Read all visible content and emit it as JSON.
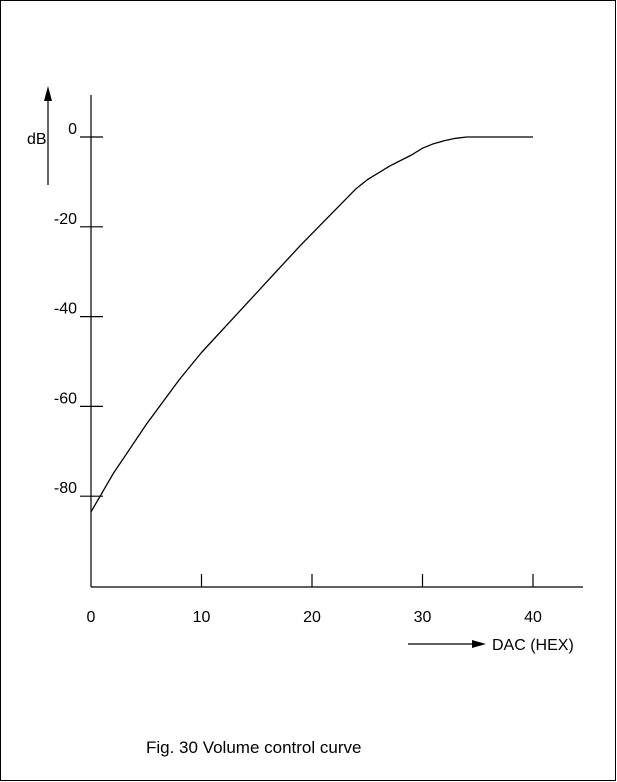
{
  "chart_data": {
    "type": "line",
    "ylabel": "dB",
    "xlabel": "DAC (HEX)",
    "caption": "Fig. 30  Volume control curve",
    "x_ticks": [
      "0",
      "10",
      "20",
      "30",
      "40"
    ],
    "y_ticks": [
      "0",
      "-20",
      "-40",
      "-60",
      "-80"
    ],
    "xlim": [
      0,
      44
    ],
    "ylim": [
      -100,
      0
    ],
    "grid": false,
    "series": [
      {
        "x": [
          0,
          2,
          5,
          8,
          10,
          13,
          16,
          19,
          22,
          24,
          25,
          27,
          29,
          30,
          31,
          32,
          33,
          34,
          35,
          37,
          40
        ],
        "y": [
          -83.5,
          -75,
          -64,
          -54,
          -48,
          -40,
          -32,
          -24,
          -16.5,
          -11.5,
          -9.5,
          -6.5,
          -4,
          -2.5,
          -1.5,
          -0.8,
          -0.3,
          0,
          0,
          0,
          0
        ]
      }
    ]
  }
}
